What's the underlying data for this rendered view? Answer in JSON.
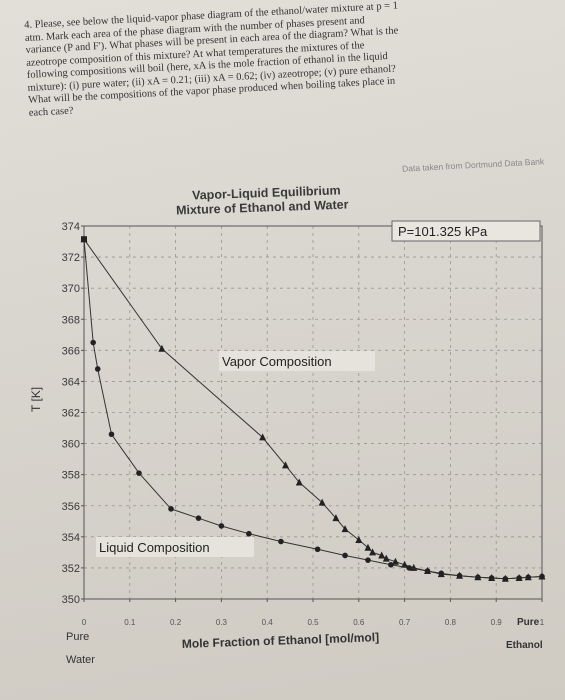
{
  "question": {
    "lines": [
      "4. Please, see below the liquid-vapor phase diagram of the ethanol/water mixture at p = 1",
      "atm. Mark each area of the phase diagram with the number of phases present and",
      "variance (P and F'). What phases will be present in each area of the diagram? What is the",
      "azeotrope composition of this mixture? At what temperatures the mixtures of the",
      "following compositions will boil (here, xA is the mole fraction of ethanol in the liquid",
      "mixture): (i) pure water; (ii) xA = 0.21; (iii) xA = 0.62; (iv) azeotrope; (v) pure ethanol?",
      "What will be the compositions of the vapor phase produced when boiling takes place in",
      "each case?"
    ]
  },
  "source_note": "Data taken from Dortmund Data Bank",
  "chart_data": {
    "type": "line",
    "title": "Vapor-Liquid Equilibrium",
    "subtitle": "Mixture of Ethanol and Water",
    "pressure_label": "P=101.325 kPa",
    "ylabel": "T [K]",
    "xlabel": "Mole Fraction of Ethanol [mol/mol]",
    "x_left_label": [
      "Pure",
      "Water"
    ],
    "x_right_label": [
      "Pure",
      "Ethanol"
    ],
    "xlim": [
      0,
      1
    ],
    "ylim": [
      350,
      374
    ],
    "yticks": [
      "350",
      "352",
      "354",
      "356",
      "358",
      "360",
      "362",
      "364",
      "366",
      "368",
      "370",
      "372",
      "374"
    ],
    "xticks": [
      "0",
      "0.1",
      "0.2",
      "0.3",
      "0.4",
      "0.5",
      "0.6",
      "0.7",
      "0.8",
      "0.9",
      "1"
    ],
    "grid": true,
    "series": [
      {
        "name": "Vapor Composition",
        "marker": "triangle",
        "x": [
          0,
          0.17,
          0.39,
          0.44,
          0.47,
          0.52,
          0.55,
          0.57,
          0.6,
          0.62,
          0.63,
          0.65,
          0.66,
          0.68,
          0.7,
          0.72,
          0.75,
          0.78,
          0.82,
          0.86,
          0.89,
          0.92,
          0.95,
          0.97,
          1
        ],
        "y": [
          373.15,
          366.1,
          360.4,
          358.6,
          357.5,
          356.2,
          355.2,
          354.5,
          353.8,
          353.3,
          353.0,
          352.8,
          352.6,
          352.4,
          352.2,
          352.0,
          351.8,
          351.6,
          351.5,
          351.4,
          351.35,
          351.3,
          351.35,
          351.4,
          351.45
        ]
      },
      {
        "name": "Liquid Composition",
        "marker": "circle",
        "x": [
          0,
          0.02,
          0.03,
          0.06,
          0.12,
          0.19,
          0.25,
          0.3,
          0.36,
          0.43,
          0.51,
          0.57,
          0.62,
          0.67,
          0.71,
          0.75,
          0.78,
          0.82,
          0.86,
          0.89,
          0.92,
          0.95,
          0.97,
          1
        ],
        "y": [
          373.15,
          366.5,
          364.8,
          360.6,
          358.1,
          355.8,
          355.2,
          354.7,
          354.2,
          353.7,
          353.2,
          352.8,
          352.5,
          352.2,
          352.0,
          351.8,
          351.65,
          351.5,
          351.4,
          351.35,
          351.3,
          351.35,
          351.4,
          351.45
        ]
      }
    ]
  }
}
